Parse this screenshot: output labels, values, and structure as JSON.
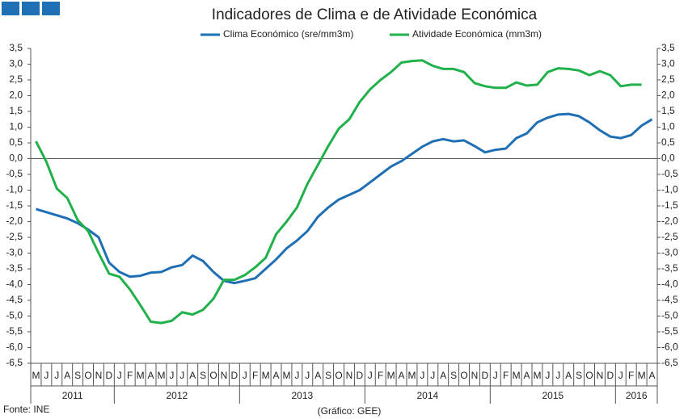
{
  "chart_data": {
    "type": "line",
    "title": "Indicadores de Clima e de Atividade Económica",
    "source": "Fonte: INE",
    "credit": "(Gráfico: GEE)",
    "categories": [
      "M",
      "J",
      "J",
      "A",
      "S",
      "O",
      "N",
      "D",
      "J",
      "F",
      "M",
      "A",
      "M",
      "J",
      "J",
      "A",
      "S",
      "O",
      "N",
      "D",
      "J",
      "F",
      "M",
      "A",
      "M",
      "J",
      "J",
      "A",
      "S",
      "O",
      "N",
      "D",
      "J",
      "F",
      "M",
      "A",
      "M",
      "J",
      "J",
      "A",
      "S",
      "O",
      "N",
      "D",
      "J",
      "F",
      "M",
      "A",
      "M",
      "J",
      "J",
      "A",
      "S",
      "O",
      "N",
      "D",
      "J",
      "F",
      "M",
      "A"
    ],
    "years": [
      "2011",
      "2012",
      "2013",
      "2014",
      "2015",
      "2016"
    ],
    "series": [
      {
        "name": "Clima Económico (sre/mm3m)",
        "color": "#1f6fb5",
        "values": [
          -1.6,
          -1.7,
          -1.8,
          -1.9,
          -2.05,
          -2.25,
          -2.5,
          -3.3,
          -3.6,
          -3.75,
          -3.72,
          -3.62,
          -3.6,
          -3.45,
          -3.38,
          -3.08,
          -3.25,
          -3.6,
          -3.88,
          -3.95,
          -3.88,
          -3.8,
          -3.5,
          -3.2,
          -2.85,
          -2.6,
          -2.3,
          -1.85,
          -1.55,
          -1.3,
          -1.15,
          -1.0,
          -0.75,
          -0.5,
          -0.25,
          -0.08,
          0.15,
          0.38,
          0.55,
          0.62,
          0.55,
          0.58,
          0.4,
          0.2,
          0.28,
          0.32,
          0.65,
          0.8,
          1.15,
          1.3,
          1.4,
          1.42,
          1.35,
          1.15,
          0.9,
          0.7,
          0.65,
          0.75,
          1.05,
          1.25
        ]
      },
      {
        "name": "Atividade Económica (mm3m)",
        "color": "#21b14b",
        "values": [
          0.55,
          -0.1,
          -0.95,
          -1.25,
          -1.95,
          -2.3,
          -3.0,
          -3.65,
          -3.75,
          -4.15,
          -4.65,
          -5.18,
          -5.22,
          -5.15,
          -4.88,
          -4.95,
          -4.8,
          -4.45,
          -3.85,
          -3.85,
          -3.7,
          -3.45,
          -3.15,
          -2.4,
          -2.0,
          -1.55,
          -0.8,
          -0.2,
          0.4,
          0.95,
          1.25,
          1.8,
          2.2,
          2.5,
          2.75,
          3.05,
          3.1,
          3.12,
          2.95,
          2.85,
          2.85,
          2.75,
          2.4,
          2.3,
          2.25,
          2.25,
          2.42,
          2.32,
          2.35,
          2.75,
          2.87,
          2.85,
          2.8,
          2.65,
          2.78,
          2.65,
          2.3,
          2.35,
          2.35,
          null
        ]
      }
    ],
    "ylim": [
      -6.5,
      3.5
    ],
    "yticks": [
      {
        "value": 3.5,
        "label": "3,5"
      },
      {
        "value": 3.0,
        "label": "3,0"
      },
      {
        "value": 2.5,
        "label": "2,5"
      },
      {
        "value": 2.0,
        "label": "2,0"
      },
      {
        "value": 1.5,
        "label": "1,5"
      },
      {
        "value": 1.0,
        "label": "1,0"
      },
      {
        "value": 0.5,
        "label": "0,5"
      },
      {
        "value": 0,
        "label": "0,0"
      },
      {
        "value": -0.5,
        "label": "-0,5"
      },
      {
        "value": -1.0,
        "label": "-1,0"
      },
      {
        "value": -1.5,
        "label": "-1,5"
      },
      {
        "value": -2.0,
        "label": "-2,0"
      },
      {
        "value": -2.5,
        "label": "-2,5"
      },
      {
        "value": -3.0,
        "label": "-3,0"
      },
      {
        "value": -3.5,
        "label": "-3,5"
      },
      {
        "value": -4.0,
        "label": "-4,0"
      },
      {
        "value": -4.5,
        "label": "-4,5"
      },
      {
        "value": -5.0,
        "label": "-5,0"
      },
      {
        "value": -5.5,
        "label": "-5,5"
      },
      {
        "value": -6.0,
        "label": "-6,0"
      },
      {
        "value": -6.5,
        "label": "-6,5"
      }
    ],
    "y2lim": [
      -6.5,
      3.5
    ],
    "y2ticks": [
      {
        "value": 3.5,
        "label": "3,5"
      },
      {
        "value": 3.0,
        "label": "3,0"
      },
      {
        "value": 2.5,
        "label": "2,5"
      },
      {
        "value": 2.0,
        "label": "2,0"
      },
      {
        "value": 1.5,
        "label": "1,5"
      },
      {
        "value": 1.0,
        "label": "1,0"
      },
      {
        "value": 0.5,
        "label": "0,5"
      },
      {
        "value": 0,
        "label": "0,0"
      },
      {
        "value": -0.5,
        "label": "-0,5"
      },
      {
        "value": -1.0,
        "label": "-1,0"
      },
      {
        "value": -1.5,
        "label": "-1,5"
      },
      {
        "value": -2.0,
        "label": "-2,0"
      },
      {
        "value": -2.5,
        "label": "-2,5"
      },
      {
        "value": -3.0,
        "label": "-3,0"
      },
      {
        "value": -3.5,
        "label": "-3,5"
      },
      {
        "value": -4.0,
        "label": "-4,0"
      },
      {
        "value": -4.5,
        "label": "-4,5"
      },
      {
        "value": -5.0,
        "label": "-5,0"
      },
      {
        "value": -5.5,
        "label": "-5,5"
      },
      {
        "value": -6.0,
        "label": "-6,0"
      },
      {
        "value": -6.5,
        "label": "-6,5"
      }
    ],
    "zero_line": true,
    "legend": "top"
  }
}
